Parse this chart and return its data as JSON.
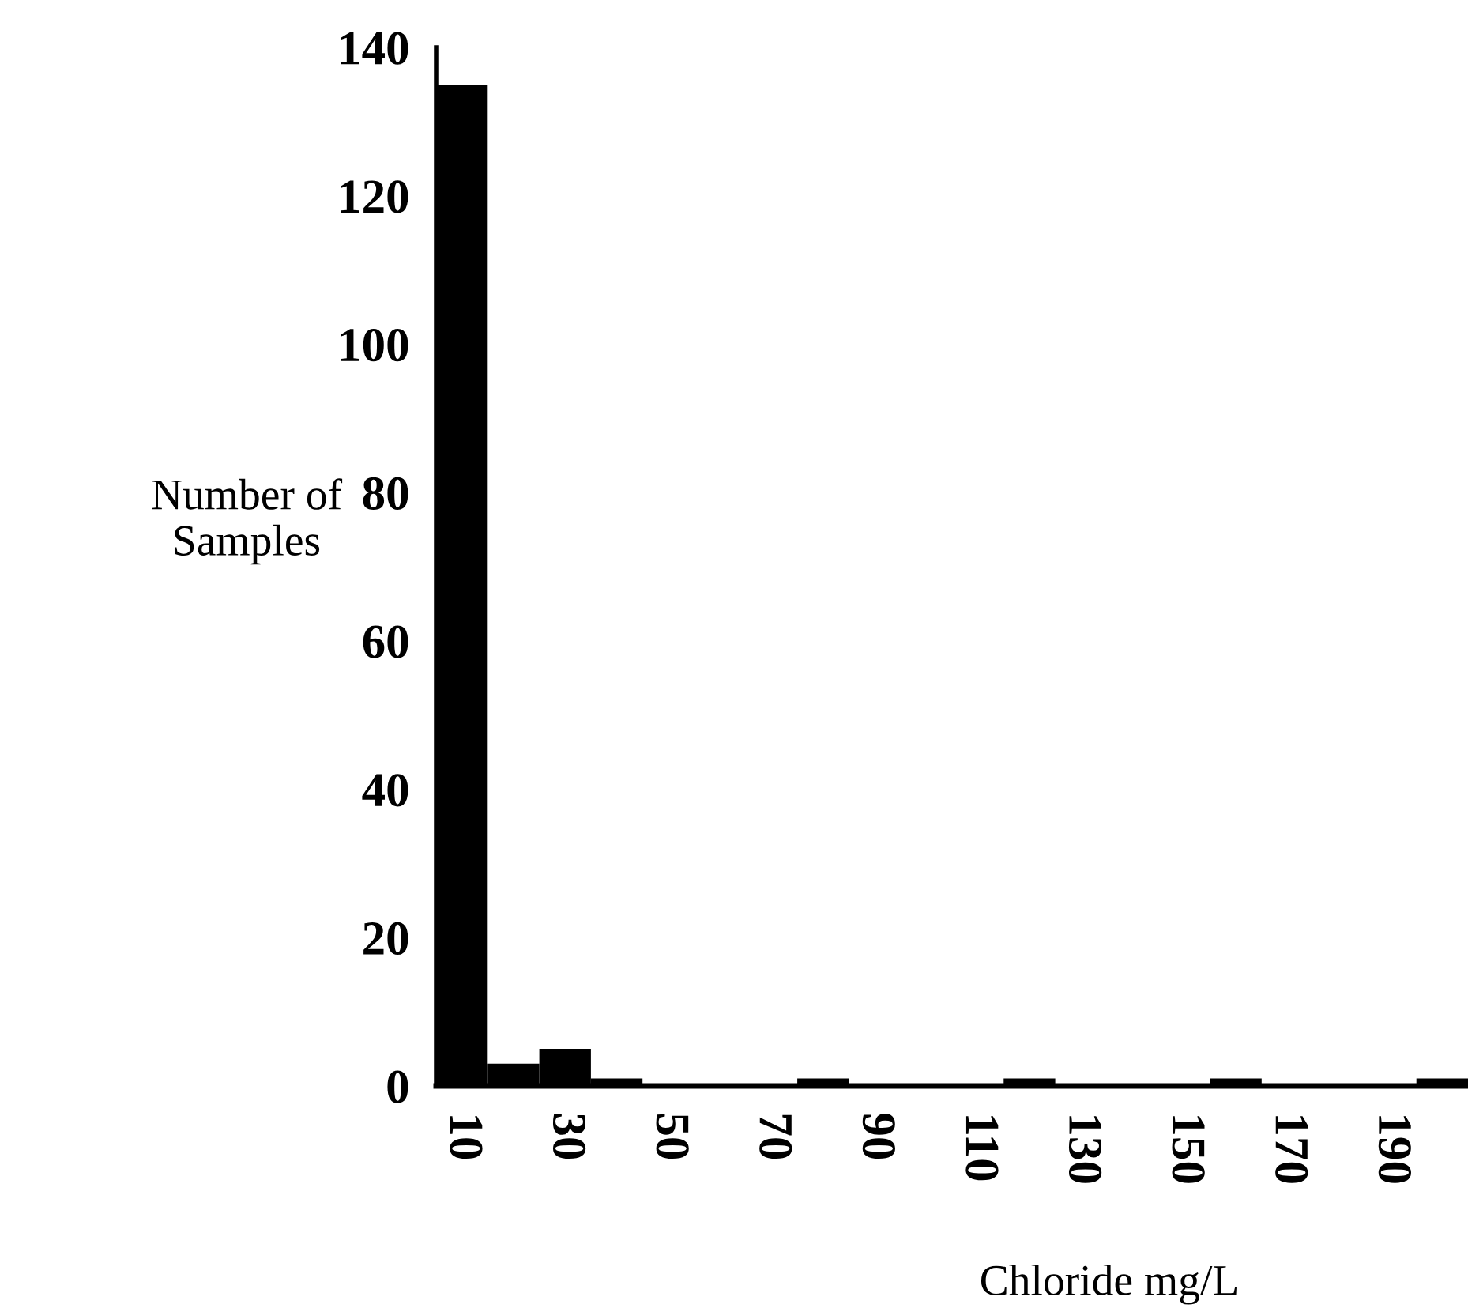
{
  "chart_data": {
    "type": "bar",
    "xlabel": "Chloride mg/L",
    "ylabel": "Number of\nSamples",
    "categories": [
      "10",
      null,
      "30",
      null,
      "50",
      null,
      "70",
      null,
      "90",
      null,
      "110",
      null,
      "130",
      null,
      "150",
      null,
      "170",
      null,
      "190",
      null
    ],
    "values": [
      135,
      3,
      5,
      1,
      0,
      0,
      0,
      1,
      0,
      0,
      0,
      1,
      0,
      0,
      0,
      1,
      0,
      0,
      0,
      1
    ],
    "color": "#000000",
    "ylim": [
      0,
      140
    ],
    "yticks": [
      0,
      20,
      40,
      60,
      80,
      100,
      120,
      140
    ],
    "grid": false
  }
}
